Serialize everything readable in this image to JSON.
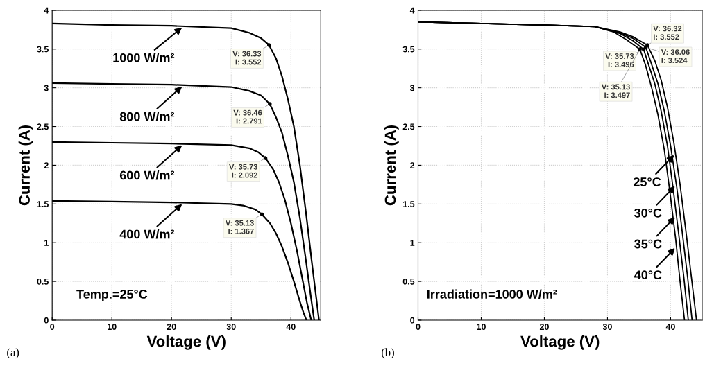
{
  "chart_data": [
    {
      "type": "line",
      "xlabel": "Voltage (V)",
      "ylabel": "Current (A)",
      "xlim": [
        0,
        45
      ],
      "ylim": [
        0,
        4
      ],
      "xticks": [
        0,
        10,
        20,
        30,
        40
      ],
      "yticks": [
        0,
        0.5,
        1,
        1.5,
        2,
        2.5,
        3,
        3.5,
        4
      ],
      "grid": true,
      "legend": "left",
      "marker": "none",
      "line_style": "solid",
      "series": [
        {
          "name": "1000 W/m²",
          "color": "#000000",
          "x": [
            0,
            10,
            20,
            30,
            33,
            35,
            36.33,
            37.5,
            38.5,
            39.5,
            40.5,
            41.5,
            42.5,
            43.5,
            44.7
          ],
          "values": [
            3.83,
            3.81,
            3.8,
            3.77,
            3.71,
            3.64,
            3.552,
            3.38,
            3.15,
            2.85,
            2.5,
            2.0,
            1.4,
            0.75,
            0
          ]
        },
        {
          "name": "800 W/m²",
          "color": "#000000",
          "x": [
            0,
            10,
            20,
            30,
            33,
            35,
            36.46,
            37.5,
            38.5,
            39.5,
            40.5,
            41.5,
            42.5,
            43.2,
            43.9
          ],
          "values": [
            3.06,
            3.05,
            3.04,
            3.01,
            2.96,
            2.9,
            2.791,
            2.62,
            2.42,
            2.12,
            1.78,
            1.32,
            0.78,
            0.38,
            0
          ]
        },
        {
          "name": "600 W/m²",
          "color": "#000000",
          "x": [
            0,
            10,
            20,
            30,
            33,
            34.5,
            35.73,
            37,
            38,
            39,
            40,
            41,
            42,
            42.7,
            43.4
          ],
          "values": [
            2.3,
            2.29,
            2.28,
            2.26,
            2.22,
            2.17,
            2.092,
            1.95,
            1.78,
            1.55,
            1.25,
            0.9,
            0.5,
            0.22,
            0
          ]
        },
        {
          "name": "400 W/m²",
          "color": "#000000",
          "x": [
            0,
            10,
            20,
            30,
            32,
            34,
            35.13,
            36.5,
            37.5,
            38.5,
            39.5,
            40.5,
            41.5,
            42.1,
            42.6
          ],
          "values": [
            1.54,
            1.53,
            1.52,
            1.5,
            1.48,
            1.43,
            1.367,
            1.25,
            1.12,
            0.95,
            0.74,
            0.5,
            0.24,
            0.1,
            0
          ]
        }
      ],
      "annotations": [
        {
          "text": "V: 36.33\nI: 3.552",
          "x": 36.33,
          "y": 3.552
        },
        {
          "text": "V: 36.46\nI: 2.791",
          "x": 36.46,
          "y": 2.791
        },
        {
          "text": "V: 35.73\nI: 2.092",
          "x": 35.73,
          "y": 2.092
        },
        {
          "text": "V: 35.13\nI: 1.367",
          "x": 35.13,
          "y": 1.367
        },
        "Temp.=25°C",
        "(a)"
      ]
    },
    {
      "type": "line",
      "xlabel": "Voltage (V)",
      "ylabel": "Current (A)",
      "xlim": [
        0,
        45
      ],
      "ylim": [
        0,
        4
      ],
      "xticks": [
        0,
        10,
        20,
        30,
        40
      ],
      "yticks": [
        0,
        0.5,
        1,
        1.5,
        2,
        2.5,
        3,
        3.5,
        4
      ],
      "grid": true,
      "legend": "right",
      "marker": "none",
      "line_style": "solid",
      "series": [
        {
          "name": "25°C",
          "color": "#000000",
          "x": [
            0,
            10,
            20,
            28,
            32,
            34,
            36.32,
            37.5,
            38.5,
            39.5,
            40.5,
            41.5,
            42.5,
            43.3,
            44.1
          ],
          "values": [
            3.85,
            3.83,
            3.81,
            3.79,
            3.72,
            3.66,
            3.552,
            3.35,
            3.1,
            2.75,
            2.3,
            1.75,
            1.1,
            0.55,
            0
          ]
        },
        {
          "name": "30°C",
          "color": "#000000",
          "x": [
            0,
            10,
            20,
            28,
            32,
            34,
            36.06,
            37,
            38,
            39,
            40,
            41,
            41.9,
            42.7,
            43.4
          ],
          "values": [
            3.85,
            3.83,
            3.81,
            3.79,
            3.71,
            3.64,
            3.524,
            3.3,
            3.05,
            2.7,
            2.25,
            1.7,
            1.1,
            0.55,
            0
          ]
        },
        {
          "name": "35°C",
          "color": "#000000",
          "x": [
            0,
            10,
            20,
            28,
            32,
            34,
            35.73,
            36.5,
            37.5,
            38.5,
            39.5,
            40.4,
            41.3,
            42.1,
            42.8
          ],
          "values": [
            3.85,
            3.83,
            3.81,
            3.79,
            3.7,
            3.61,
            3.496,
            3.3,
            3.05,
            2.7,
            2.25,
            1.7,
            1.1,
            0.55,
            0
          ]
        },
        {
          "name": "40°C",
          "color": "#000000",
          "x": [
            0,
            10,
            20,
            28,
            31,
            33,
            35.13,
            36,
            37,
            38,
            39,
            39.9,
            40.8,
            41.5,
            42.2
          ],
          "values": [
            3.85,
            3.83,
            3.81,
            3.79,
            3.72,
            3.62,
            3.497,
            3.3,
            3.0,
            2.65,
            2.2,
            1.65,
            1.05,
            0.5,
            0
          ]
        }
      ],
      "annotations": [
        {
          "text": "V: 36.32\nI: 3.552",
          "x": 36.32,
          "y": 3.552
        },
        {
          "text": "V: 36.06\nI: 3.524",
          "x": 36.06,
          "y": 3.524
        },
        {
          "text": "V: 35.73\nI: 3.496",
          "x": 35.73,
          "y": 3.496
        },
        {
          "text": "V: 35.13\nI: 3.497",
          "x": 35.13,
          "y": 3.497
        },
        "Irradiation=1000 W/m²",
        "(b)"
      ]
    }
  ]
}
